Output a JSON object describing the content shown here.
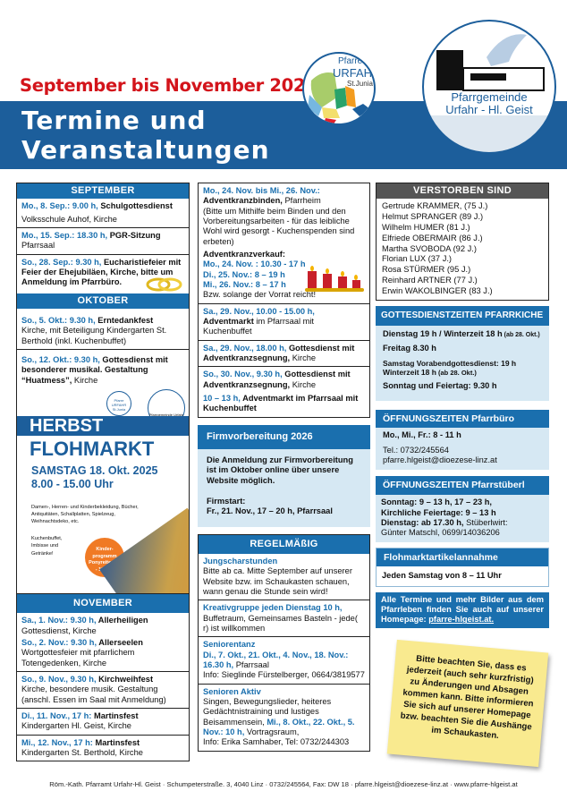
{
  "header": {
    "subtitle": "September bis November 2025",
    "title_line1": "Termine und",
    "title_line2": "Veranstaltungen",
    "logo_urfahr": {
      "line1": "Pfarre",
      "line2": "URFAHR",
      "line3": "St.Junia"
    },
    "logo_hlgeist": {
      "line1": "Pfarrgemeinde",
      "line2": "Urfahr - Hl. Geist"
    }
  },
  "september": {
    "header": "SEPTEMBER",
    "entries": [
      {
        "d": "Mo., 8. Sep.: 9.00 h,",
        "t": " Schulgottesdienst",
        "r": "Volksschule Auhof, Kirche"
      },
      {
        "d": "Mo., 15. Sep.: 18.30 h,",
        "t": " PGR-Sitzung",
        "r": "Pfarrsaal"
      },
      {
        "d": "So., 28. Sep.: 9.30 h,",
        "t": " Eucharistiefeier mit Feier der Ehejubiläen, Kirche, bitte um Anmeldung im Pfarrbüro.",
        "r": ""
      }
    ]
  },
  "oktober": {
    "header": "OKTOBER",
    "entries": [
      {
        "d": "So., 5. Okt.: 9.30 h,",
        "t": " Erntedankfest",
        "r": "Kirche, mit Beteiligung Kindergarten St. Berthold (inkl. Kuchenbuffet)"
      },
      {
        "d": "So., 12. Okt.: 9.30 h,",
        "t": " Gottesdienst mit besonderer musikal. Gestaltung “Huatmess”,",
        "r": " Kirche"
      }
    ]
  },
  "flyer": {
    "logo1": "Pfarre URFAHR St.Junia",
    "logo2": "Pfarrgemeinde Urfahr - Hl. Geist",
    "line1": "HERBST",
    "line2": "FLOHMARKT",
    "date": "SAMSTAG 18. Okt. 2025",
    "time": "8.00 - 15.00 Uhr",
    "items": "Damen-, Herren- und Kinderbekleidung, Bücher, Antiquitäten, Schallplatten, Spielzeug, Weihnachtsdeko, etc.",
    "food": "Kuchenbuffet, Imbisse und Getränke!",
    "badge": "Kinder-programm Ponyreiten 11 - 13 Uhr"
  },
  "november": {
    "header": "NOVEMBER",
    "entries": [
      {
        "d": "Sa., 1. Nov.: 9.30 h,",
        "t": " Allerheiligen",
        "r": "Gottesdienst, Kirche",
        "d2": "So., 2. Nov.: 9.30 h,",
        "t2": " Allerseelen",
        "r2": "Wortgottesfeier mit pfarrlichem Totengedenken, Kirche"
      },
      {
        "d": "So., 9. Nov., 9.30 h,",
        "t": " Kirchweihfest",
        "r": "Kirche, besondere musik. Gestaltung (anschl. Essen im Saal mit Anmeldung)"
      },
      {
        "d": "Di., 11. Nov., 17 h:",
        "t": " Martinsfest",
        "r": "Kindergarten Hl. Geist, Kirche"
      },
      {
        "d": "Mi., 12. Nov., 17 h:",
        "t": " Martinsfest",
        "r": "Kindergarten St. Berthold, Kirche"
      }
    ]
  },
  "advent": {
    "d": "Mo., 24. Nov. bis Mi., 26. Nov.:",
    "t": "Adventkranzbinden,",
    "r0": " Pfarrheim",
    "r": "(Bitte um Mithilfe beim Binden und den Vorbereitungsarbeiten - für das leibliche Wohl wird gesorgt - Kuchenspenden sind erbeten)",
    "sale": "Adventkranzverkauf:",
    "s1": "Mo., 24. Nov. : 10.30 - 17 h",
    "s2": "Di., 25. Nov.: 8 – 19 h",
    "s3": "Mi., 26. Nov.: 8 – 17 h",
    "s4": "Bzw. solange der Vorrat reicht!",
    "entries": [
      {
        "d": "Sa., 29. Nov., 10.00 - 15.00 h,",
        "t": " Adventmarkt",
        "r": " im Pfarrsaal mit Kuchenbuffet"
      },
      {
        "d": "Sa., 29. Nov., 18.00 h,",
        "t": " Gottesdienst mit Adventkranzsegnung,",
        "r": " Kirche"
      },
      {
        "d": "So., 30. Nov., 9.30 h,",
        "t": " Gottesdienst mit Adventkranzsegnung,",
        "r": " Kirche",
        "d2": "10 – 13 h,",
        "t2": " Adventmarkt im Pfarrsaal mit Kuchenbuffet"
      }
    ]
  },
  "firmung": {
    "header": "Firmvorbereitung 2026",
    "text": "Die Anmeldung zur Firmvorbereitung ist im Oktober online über unsere Website möglich.",
    "start_label": "Firmstart:",
    "start": "Fr., 21. Nov., 17 – 20 h, Pfarrsaal"
  },
  "regelmaessig": {
    "header": "REGELMÄßIG",
    "entries": [
      {
        "d": "Jungscharstunden",
        "r": "Bitte ab ca. Mitte September auf unserer Website bzw. im Schaukasten schauen, wann genau die Stunde sein wird!"
      },
      {
        "d": "Kreativgruppe jeden Dienstag 10 h,",
        "r": " Buffetraum, Gemeinsames Basteln - jede( r) ist willkommen"
      },
      {
        "d": "Seniorentanz",
        "d2": "Di., 7. Okt., 21. Okt., 4. Nov., 18. Nov.: 16.30 h,",
        "r": " Pfarrsaal",
        "r2": "Info: Sieglinde Fürstelberger, 0664/3819577"
      },
      {
        "d": "Senioren Aktiv",
        "r": "Singen, Bewegungslieder, heiteres Gedächtnistraining und lustiges Beisammensein,",
        "d2": " Mi., 8. Okt., 22. Okt., 5. Nov.: 10 h,",
        "r2": " Vortragsraum,",
        "r3": "Info: Erika Samhaber, Tel: 0732/244303"
      }
    ]
  },
  "verstorben": {
    "header": "VERSTORBEN SIND",
    "names": [
      "Gertrude KRAMMER, (75 J.)",
      "Helmut SPRANGER (89 J.)",
      "Wilhelm HUMER (81 J.)",
      "Elfriede OBERMAIR (86 J.)",
      "Martha SVOBODA (92 J.)",
      "Florian LUX (37 J.)",
      "Rosa STÜRMER (95 J.)",
      "Reinhard ARTNER (77 J.)",
      "Erwin WAKOLBINGER (83 J.)"
    ]
  },
  "gottesdienst": {
    "header": "GOTTESDIENSTZEITEN PFARRKICHE",
    "l1": "Dienstag 19 h / Winterzeit 18 h",
    "l1s": " (ab 28. Okt.)",
    "l2": "Freitag 8.30 h",
    "l3": "Samstag Vorabendgottesdienst: 19 h",
    "l3b": "Winterzeit 18 h",
    "l3s": " (ab 28. Okt.)",
    "l4": "Sonntag und Feiertag: 9.30 h"
  },
  "pfarrbuero": {
    "header": "ÖFFNUNGSZEITEN Pfarrbüro",
    "hours": "Mo., Mi., Fr.: 8 - 11 h",
    "tel": "Tel.: 0732/245564",
    "email": "pfarre.hlgeist@dioezese-linz.at"
  },
  "stueberl": {
    "header": "ÖFFNUNGSZEITEN Pfarrstüberl",
    "l1": "Sonntag: 9 – 13 h, 17 – 23 h,",
    "l2": "Kirchliche Feiertage: 9 – 13 h",
    "l3": "Dienstag: ab 17.30 h,",
    "l3b": " Stüberlwirt:",
    "l4": "Günter Matschl, 0699/14036206"
  },
  "flohannahme": {
    "header": "Flohmarktartikelannahme",
    "text": "Jeden Samstag von 8 – 11 Uhr"
  },
  "homepage": {
    "text": "Alle Termine und mehr Bilder aus dem Pfarrleben finden Sie auch auf unserer Homepage: ",
    "link": "pfarre-hlgeist.at."
  },
  "note": "Bitte beachten Sie, dass es jederzeit (auch sehr kurzfristig) zu Änderungen und Absagen kommen kann. Bitte informieren Sie sich auf unserer Homepage bzw. beachten Sie die Aushänge im Schaukasten.",
  "footer": "Röm.-Kath. Pfarramt Urfahr-Hl. Geist · Schumpeterstraße. 3, 4040 Linz · 0732/245564, Fax: DW 18 · pfarre.hlgeist@dioezese-linz.at · www.pfarre-hlgeist.at",
  "colors": {
    "blue": "#1a6fae",
    "band": "#1c5e9b",
    "red": "#d3141b",
    "lightblue": "#d6e8f3",
    "note": "#f9ea8f"
  }
}
